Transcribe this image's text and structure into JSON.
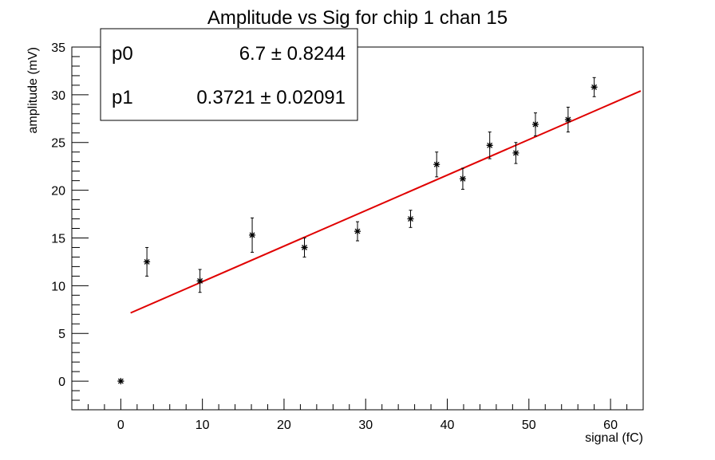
{
  "chart_data": {
    "type": "scatter",
    "title": "Amplitude vs Sig for chip 1 chan 15",
    "xlabel": "signal (fC)",
    "ylabel": "amplitude (mV)",
    "xlim": [
      -6,
      64
    ],
    "ylim": [
      -3,
      35
    ],
    "x_ticks": [
      0,
      10,
      20,
      30,
      40,
      50,
      60
    ],
    "y_ticks": [
      0,
      5,
      10,
      15,
      20,
      25,
      30,
      35
    ],
    "grid": false,
    "points": [
      {
        "x": 0.0,
        "y": 0.0,
        "err": 0.0
      },
      {
        "x": 3.2,
        "y": 12.5,
        "err": 1.5
      },
      {
        "x": 9.7,
        "y": 10.5,
        "err": 1.2
      },
      {
        "x": 16.1,
        "y": 15.3,
        "err": 1.8
      },
      {
        "x": 22.5,
        "y": 14.0,
        "err": 1.0
      },
      {
        "x": 29.0,
        "y": 15.7,
        "err": 1.0
      },
      {
        "x": 35.5,
        "y": 17.0,
        "err": 0.9
      },
      {
        "x": 38.7,
        "y": 22.7,
        "err": 1.3
      },
      {
        "x": 41.9,
        "y": 21.2,
        "err": 1.1
      },
      {
        "x": 45.2,
        "y": 24.7,
        "err": 1.4
      },
      {
        "x": 48.4,
        "y": 23.9,
        "err": 1.1
      },
      {
        "x": 50.8,
        "y": 26.9,
        "err": 1.2
      },
      {
        "x": 54.8,
        "y": 27.4,
        "err": 1.3
      },
      {
        "x": 58.0,
        "y": 30.8,
        "err": 1.0
      }
    ],
    "fit": {
      "function": "pol1",
      "p0": 6.7,
      "p1": 0.3721,
      "x_range": [
        1.2,
        63.7
      ],
      "color": "#e00000"
    },
    "stats_box": [
      {
        "name": "p0",
        "value": "6.7",
        "error": "0.8244"
      },
      {
        "name": "p1",
        "value": "0.3721",
        "error": "0.02091"
      }
    ],
    "stats_placement": "top-left"
  }
}
